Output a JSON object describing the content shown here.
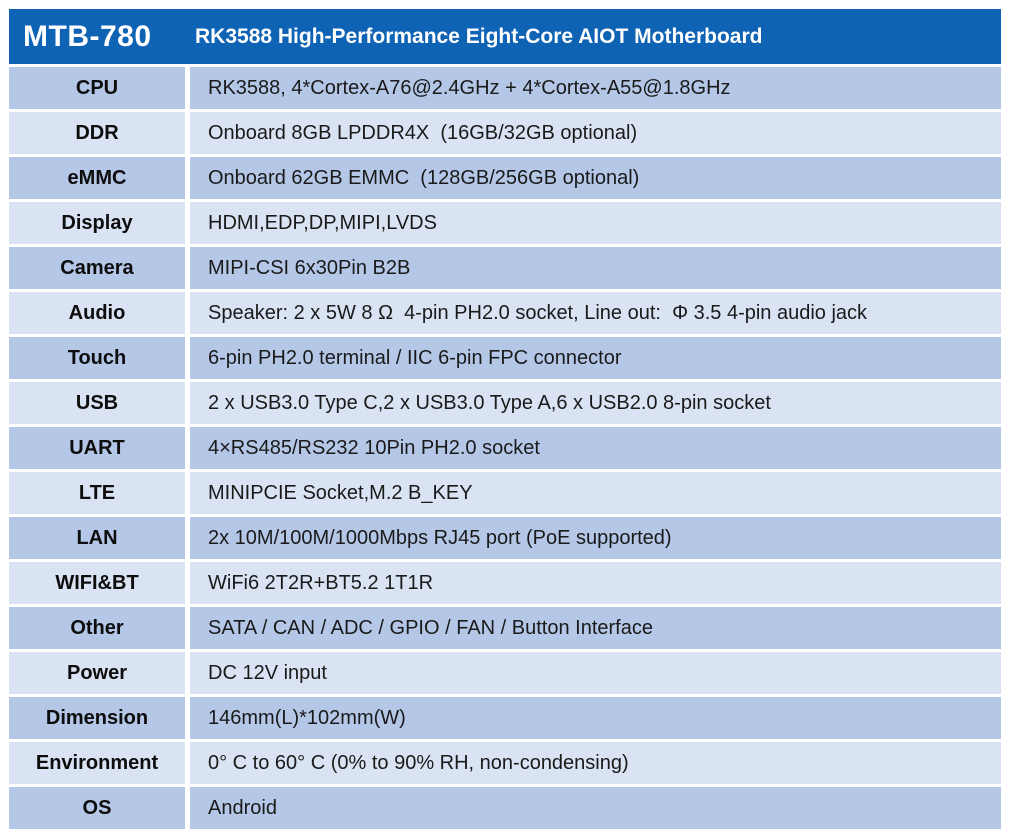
{
  "colors": {
    "header_bg": "#0f63b5",
    "header_text": "#ffffff",
    "row_odd": "#b4c7e7",
    "row_even": "#dae3f3"
  },
  "header": {
    "model": "MTB-780",
    "title": "RK3588 High-Performance Eight-Core AIOT Motherboard"
  },
  "table": {
    "rows": [
      {
        "label": "CPU",
        "value": "RK3588, 4*Cortex-A76@2.4GHz + 4*Cortex-A55@1.8GHz"
      },
      {
        "label": "DDR",
        "value": "Onboard 8GB LPDDR4X  (16GB/32GB optional)"
      },
      {
        "label": "eMMC",
        "value": "Onboard 62GB EMMC  (128GB/256GB optional)"
      },
      {
        "label": "Display",
        "value": "HDMI,EDP,DP,MIPI,LVDS"
      },
      {
        "label": "Camera",
        "value": "MIPI-CSI 6x30Pin B2B"
      },
      {
        "label": "Audio",
        "value": "Speaker: 2 x 5W 8 Ω  4-pin PH2.0 socket, Line out:  Φ 3.5 4-pin audio jack"
      },
      {
        "label": "Touch",
        "value": "6-pin PH2.0 terminal / IIC 6-pin FPC connector"
      },
      {
        "label": "USB",
        "value": "2 x USB3.0 Type C,2 x USB3.0 Type A,6 x USB2.0 8-pin socket"
      },
      {
        "label": "UART",
        "value": "4×RS485/RS232 10Pin PH2.0 socket"
      },
      {
        "label": "LTE",
        "value": "MINIPCIE Socket,M.2 B_KEY"
      },
      {
        "label": "LAN",
        "value": "2x 10M/100M/1000Mbps RJ45 port (PoE supported)"
      },
      {
        "label": "WIFI&BT",
        "value": "WiFi6 2T2R+BT5.2 1T1R"
      },
      {
        "label": "Other",
        "value": "SATA / CAN / ADC / GPIO / FAN / Button Interface"
      },
      {
        "label": "Power",
        "value": "DC 12V input"
      },
      {
        "label": "Dimension",
        "value": "146mm(L)*102mm(W)"
      },
      {
        "label": "Environment",
        "value": "0° C to 60° C (0% to 90% RH, non-condensing)"
      },
      {
        "label": "OS",
        "value": "Android"
      }
    ]
  }
}
